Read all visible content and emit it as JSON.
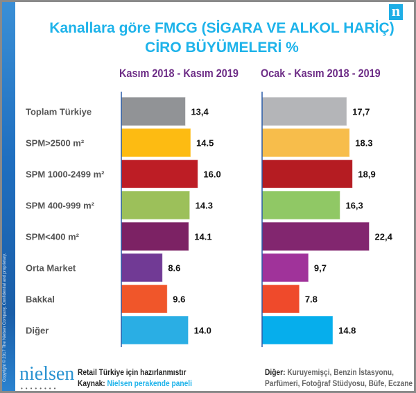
{
  "title_line1": "Kanallara göre FMCG (SİGARA VE ALKOL HARİÇ)",
  "title_line2": "CİRO BÜYÜMELERİ %",
  "logo_letter": "n",
  "copyright": "Copyright © 2017 The Nielsen Company. Confidential and proprietary.",
  "footer": {
    "brand": "nielsen",
    "brand_dots": "••••••••",
    "prepared": "Retail Türkiye için hazırlanmıstır",
    "source_label": "Kaynak:",
    "source_value": "Nielsen perakende paneli",
    "other_label": "Diğer:",
    "other_line1": "Kuruyemişçi, Benzin İstasyonu,",
    "other_line2": "Parfümeri, Fotoğraf Stüdyosu, Büfe, Eczane"
  },
  "colors": {
    "title": "#1eb3ea",
    "header": "#6d2c86",
    "axis": "#2a5ca8",
    "source": "#1eb3ea"
  },
  "chart_data": {
    "type": "bar",
    "orientation": "horizontal",
    "title": "Kanallara göre FMCG (SİGARA VE ALKOL HARİÇ) CİRO BÜYÜMELERİ %",
    "categories": [
      "Toplam Türkiye",
      "SPM>2500 m²",
      "SPM 1000-2499 m²",
      "SPM 400-999 m²",
      "SPM<400 m²",
      "Orta Market",
      "Bakkal",
      "Diğer"
    ],
    "series": [
      {
        "name": "Kasım 2018 - Kasım 2019",
        "values": [
          13.4,
          14.5,
          16.0,
          14.3,
          14.1,
          8.6,
          9.6,
          14.0
        ],
        "labels": [
          "13,4",
          "14.5",
          "16.0",
          "14.3",
          "14.1",
          "8.6",
          "9.6",
          "14.0"
        ],
        "colors": [
          "#919396",
          "#fdbb12",
          "#bd1d25",
          "#9cc05a",
          "#7c2264",
          "#713a95",
          "#f0562a",
          "#2aaee4"
        ]
      },
      {
        "name": "Ocak - Kasım 2018 - 2019",
        "values": [
          17.7,
          18.3,
          18.9,
          16.3,
          22.4,
          9.7,
          7.8,
          14.8
        ],
        "labels": [
          "17,7",
          "18.3",
          "18,9",
          "16,3",
          "22,4",
          "9,7",
          "7.8",
          "14.8"
        ],
        "colors": [
          "#b4b5b8",
          "#f7bd4b",
          "#b51c22",
          "#90c865",
          "#82266f",
          "#a0339a",
          "#ef4a2b",
          "#06aeec"
        ]
      }
    ],
    "grid": false,
    "legend": "none"
  }
}
